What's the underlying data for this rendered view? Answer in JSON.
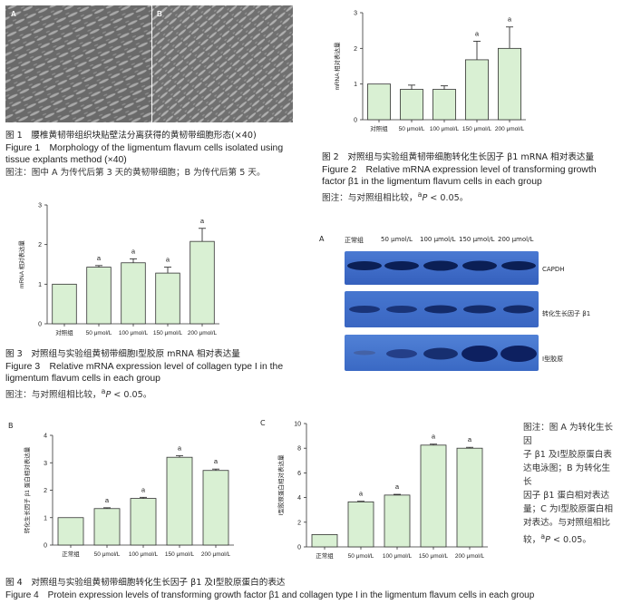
{
  "fig1": {
    "panel_a": "A",
    "panel_b": "B",
    "caption_cn": "图 1　腰椎黄韧带组织块贴壁法分离获得的黄韧带细胞形态(×40)",
    "caption_en_1": "Figure 1　Morphology of the ligmentum flavum cells isolated using",
    "caption_en_2": "tissue explants method (×40)",
    "note": "图注：图中 A 为传代后第 3 天的黄韧带细胞；B 为传代后第 5 天。"
  },
  "fig2": {
    "caption_cn": "图 2　对照组与实验组黄韧带细胞转化生长因子 β1 mRNA 相对表达量",
    "caption_en_1": "Figure 2　Relative mRNA expression level of transforming growth",
    "caption_en_2": "factor β1 in the ligmentum flavum cells in each group",
    "note_prefix": "图注：与对照组相比较，",
    "note_sup": "a",
    "note_p": "P",
    "note_suffix": " < 0.05。"
  },
  "fig3": {
    "caption_cn": "图 3　对照组与实验组黄韧带细胞Ⅰ型胶原 mRNA 相对表达量",
    "caption_en_1": "Figure 3　Relative mRNA expression level of collagen type I in the",
    "caption_en_2": "ligmentum flavum cells in each group",
    "note_prefix": "图注：与对照组相比较，",
    "note_sup": "a",
    "note_p": "P",
    "note_suffix": " < 0.05。"
  },
  "fig4": {
    "panel_a": "A",
    "panel_b": "B",
    "panel_c": "C",
    "wb_lanes": [
      "正常组",
      "50 μmol/L",
      "100 μmol/L",
      "150 μmol/L",
      "200 μmol/L"
    ],
    "wb_labels": [
      "CAPDH",
      "转化生长因子 β1",
      "Ⅰ型胶原"
    ],
    "side_note_lines": [
      "图注：图 A 为转化生长因",
      "子 β1 及Ⅰ型胶原蛋白表",
      "达电泳图；B 为转化生长",
      "因子 β1 蛋白相对表达",
      "量；C 为Ⅰ型胶原蛋白相",
      "对表达。与对照组相比",
      "较，"
    ],
    "side_note_sup": "a",
    "side_note_p": "P",
    "side_note_suffix": " < 0.05。",
    "caption_cn": "图 4　对照组与实验组黄韧带细胞转化生长因子 β1 及Ⅰ型胶原蛋白的表达",
    "caption_en": "Figure 4　Protein expression levels of transforming growth factor β1 and collagen type I in the ligmentum flavum cells in each group"
  },
  "colors": {
    "bar_fill": "#d9f0d3",
    "bar_stroke": "#333333",
    "blot_bg": "#3d6bc6",
    "band": "#0b1f55"
  },
  "chart_data": [
    {
      "id": "fig2",
      "type": "bar",
      "categories": [
        "对照组",
        "50 μmol/L",
        "100 μmol/L",
        "150 μmol/L",
        "200 μmol/L"
      ],
      "values": [
        1.0,
        0.85,
        0.85,
        1.68,
        2.0
      ],
      "errors": [
        0.0,
        0.12,
        0.1,
        0.52,
        0.6
      ],
      "sig": [
        "",
        "",
        "",
        "a",
        "a"
      ],
      "ylabel": "mRNA 相对表达量",
      "ylim": [
        0,
        3
      ],
      "yticks": [
        "0",
        "1",
        "2",
        "3"
      ]
    },
    {
      "id": "fig3",
      "type": "bar",
      "categories": [
        "对照组",
        "50 μmol/L",
        "100 μmol/L",
        "150 μmol/L",
        "200 μmol/L"
      ],
      "values": [
        1.0,
        1.43,
        1.54,
        1.28,
        2.08
      ],
      "errors": [
        0.0,
        0.04,
        0.1,
        0.15,
        0.33
      ],
      "sig": [
        "",
        "a",
        "a",
        "a",
        "a"
      ],
      "ylabel": "mRNA 相对表达量",
      "ylim": [
        0,
        3
      ],
      "yticks": [
        "0",
        "1",
        "2",
        "3"
      ]
    },
    {
      "id": "fig4b",
      "type": "bar",
      "categories": [
        "正常组",
        "50 μmol/L",
        "100 μmol/L",
        "150 μmol/L",
        "200 μmol/L"
      ],
      "values": [
        1.0,
        1.33,
        1.7,
        3.2,
        2.72
      ],
      "errors": [
        0.0,
        0.03,
        0.04,
        0.06,
        0.05
      ],
      "sig": [
        "",
        "a",
        "a",
        "a",
        "a"
      ],
      "ylabel": "转化生长因子 β1 蛋白相对表达量",
      "ylim": [
        0,
        4
      ],
      "yticks": [
        "0",
        "1",
        "2",
        "3",
        "4"
      ]
    },
    {
      "id": "fig4c",
      "type": "bar",
      "categories": [
        "正常组",
        "50 μmol/L",
        "100 μmol/L",
        "150 μmol/L",
        "200 μmol/L"
      ],
      "values": [
        1.0,
        3.65,
        4.2,
        8.25,
        8.0
      ],
      "errors": [
        0.0,
        0.05,
        0.06,
        0.08,
        0.07
      ],
      "sig": [
        "",
        "a",
        "a",
        "a",
        "a"
      ],
      "ylabel": "Ⅰ型胶原蛋白相对表达量",
      "ylim": [
        0,
        10
      ],
      "yticks": [
        "0",
        "2",
        "4",
        "6",
        "8",
        "10"
      ]
    }
  ]
}
